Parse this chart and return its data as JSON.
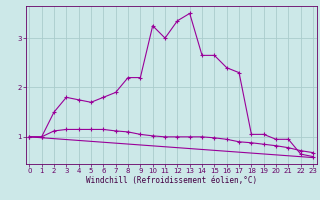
{
  "xlabel": "Windchill (Refroidissement éolien,°C)",
  "bg_color": "#cce8e8",
  "line_color": "#990099",
  "grid_color": "#aacccc",
  "spine_color": "#660066",
  "x_ticks": [
    0,
    1,
    2,
    3,
    4,
    5,
    6,
    7,
    8,
    9,
    10,
    11,
    12,
    13,
    14,
    15,
    16,
    17,
    18,
    19,
    20,
    21,
    22,
    23
  ],
  "y_ticks": [
    1,
    2,
    3
  ],
  "xlim": [
    -0.3,
    23.3
  ],
  "ylim": [
    0.45,
    3.65
  ],
  "series1_x": [
    0,
    1,
    2,
    3,
    4,
    5,
    6,
    7,
    8,
    9,
    10,
    11,
    12,
    13,
    14,
    15,
    16,
    17,
    18,
    19,
    20,
    21,
    22,
    23
  ],
  "series1_y": [
    1.0,
    1.0,
    1.5,
    1.8,
    1.75,
    1.7,
    1.8,
    1.9,
    2.2,
    2.2,
    3.25,
    3.0,
    3.35,
    3.5,
    2.65,
    2.65,
    2.4,
    2.3,
    1.05,
    1.05,
    0.95,
    0.95,
    0.65,
    0.6
  ],
  "series2_x": [
    0,
    1,
    2,
    3,
    4,
    5,
    6,
    7,
    8,
    9,
    10,
    11,
    12,
    13,
    14,
    15,
    16,
    17,
    18,
    19,
    20,
    21,
    22,
    23
  ],
  "series2_y": [
    1.0,
    1.0,
    1.12,
    1.15,
    1.15,
    1.15,
    1.15,
    1.12,
    1.1,
    1.05,
    1.02,
    1.0,
    1.0,
    1.0,
    1.0,
    0.98,
    0.95,
    0.9,
    0.88,
    0.85,
    0.82,
    0.78,
    0.72,
    0.68
  ],
  "series3_x": [
    0,
    23
  ],
  "series3_y": [
    1.0,
    0.58
  ],
  "tick_color": "#660066",
  "xlabel_color": "#440044",
  "tick_fontsize": 5.0,
  "xlabel_fontsize": 5.5
}
